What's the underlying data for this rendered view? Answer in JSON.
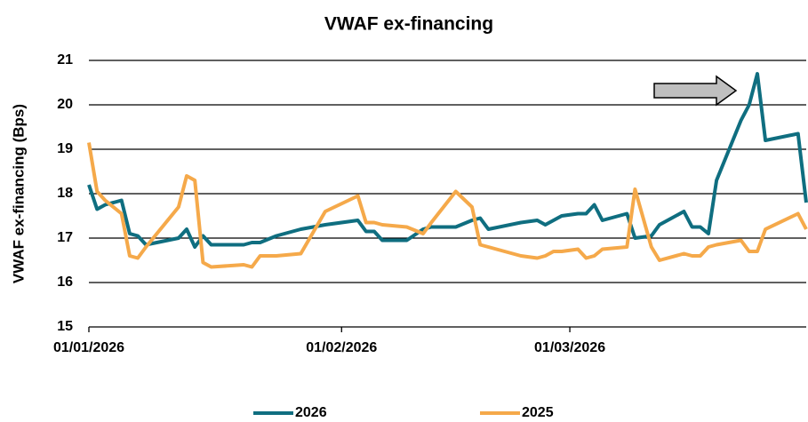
{
  "chart_data": {
    "type": "line",
    "title": "VWAF ex-financing",
    "ylabel": "VWAF ex-financing (Bps)",
    "x": [
      "01/01/2026",
      "02/01/2026",
      "03/01/2026",
      "05/01/2026",
      "06/01/2026",
      "07/01/2026",
      "08/01/2026",
      "12/01/2026",
      "13/01/2026",
      "14/01/2026",
      "15/01/2026",
      "16/01/2026",
      "20/01/2026",
      "21/01/2026",
      "22/01/2026",
      "24/01/2026",
      "27/01/2026",
      "30/01/2026",
      "03/02/2026",
      "04/02/2026",
      "05/02/2026",
      "06/02/2026",
      "09/02/2026",
      "11/02/2026",
      "12/02/2026",
      "15/02/2026",
      "17/02/2026",
      "18/02/2026",
      "19/02/2026",
      "23/02/2026",
      "25/02/2026",
      "26/02/2026",
      "27/02/2026",
      "28/02/2026",
      "02/03/2026",
      "03/03/2026",
      "04/03/2026",
      "05/03/2026",
      "08/03/2026",
      "09/03/2026",
      "11/03/2026",
      "12/03/2026",
      "15/03/2026",
      "16/03/2026",
      "17/03/2026",
      "18/03/2026",
      "19/03/2026",
      "22/03/2026",
      "23/03/2026",
      "24/03/2026",
      "25/03/2026",
      "29/03/2026",
      "30/03/2026"
    ],
    "series": [
      {
        "name": "2026",
        "color": "#0f6e80",
        "values": [
          18.2,
          17.65,
          17.75,
          17.85,
          17.1,
          17.05,
          16.85,
          17.0,
          17.2,
          16.8,
          17.05,
          16.85,
          16.85,
          16.9,
          16.9,
          17.05,
          17.2,
          17.3,
          17.4,
          17.15,
          17.15,
          16.95,
          16.95,
          17.2,
          17.25,
          17.25,
          17.4,
          17.45,
          17.2,
          17.35,
          17.4,
          17.3,
          17.4,
          17.5,
          17.55,
          17.55,
          17.75,
          17.4,
          17.55,
          17.0,
          17.05,
          17.3,
          17.6,
          17.25,
          17.25,
          17.1,
          18.3,
          19.65,
          20.0,
          20.7,
          19.2,
          19.35,
          17.8
        ]
      },
      {
        "name": "2025",
        "color": "#f5a94a",
        "values": [
          19.15,
          18.05,
          17.85,
          17.55,
          16.6,
          16.55,
          16.8,
          17.7,
          18.4,
          18.3,
          16.45,
          16.35,
          16.4,
          16.35,
          16.6,
          16.6,
          16.65,
          17.6,
          17.95,
          17.35,
          17.35,
          17.3,
          17.25,
          17.1,
          17.35,
          18.05,
          17.7,
          16.85,
          16.8,
          16.6,
          16.55,
          16.6,
          16.7,
          16.7,
          16.75,
          16.55,
          16.6,
          16.75,
          16.8,
          18.1,
          16.8,
          16.5,
          16.65,
          16.6,
          16.6,
          16.8,
          16.85,
          16.95,
          16.7,
          16.7,
          17.2,
          17.55,
          17.2
        ]
      }
    ],
    "xlim": [
      "01/01/2026",
      "30/03/2026"
    ],
    "xticks": [
      "01/01/2026",
      "01/02/2026",
      "01/03/2026"
    ],
    "ylim": [
      15,
      21
    ],
    "yticks": [
      15,
      16,
      17,
      18,
      19,
      20,
      21
    ],
    "grid": true,
    "legend": "bottom"
  }
}
